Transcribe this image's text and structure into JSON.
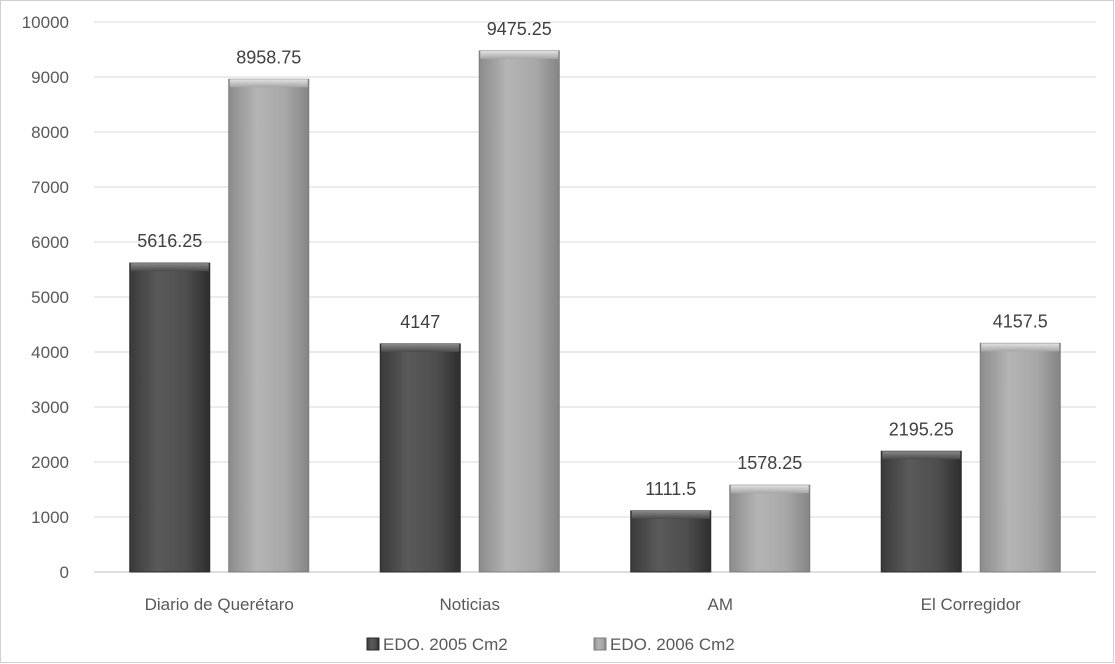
{
  "chart_data": {
    "type": "bar",
    "categories": [
      "Diario de Querétaro",
      "Noticias",
      "AM",
      "El Corregidor"
    ],
    "series": [
      {
        "name": "EDO. 2005 Cm2",
        "values": [
          5616.25,
          4147,
          1111.5,
          2195.25
        ],
        "color": "#555555"
      },
      {
        "name": "EDO. 2006 Cm2",
        "values": [
          8958.75,
          9475.25,
          1578.25,
          4157.5
        ],
        "color": "#aaaaaa"
      }
    ],
    "data_labels": [
      [
        "5616.25",
        "4147",
        "1111.5",
        "2195.25"
      ],
      [
        "8958.75",
        "9475.25",
        "1578.25",
        "4157.5"
      ]
    ],
    "y_ticks": [
      "0",
      "1000",
      "2000",
      "3000",
      "4000",
      "5000",
      "6000",
      "7000",
      "8000",
      "9000",
      "10000"
    ],
    "ylim": [
      0,
      10000
    ],
    "grid": true,
    "legend_position": "bottom",
    "title": "",
    "xlabel": "",
    "ylabel": ""
  }
}
